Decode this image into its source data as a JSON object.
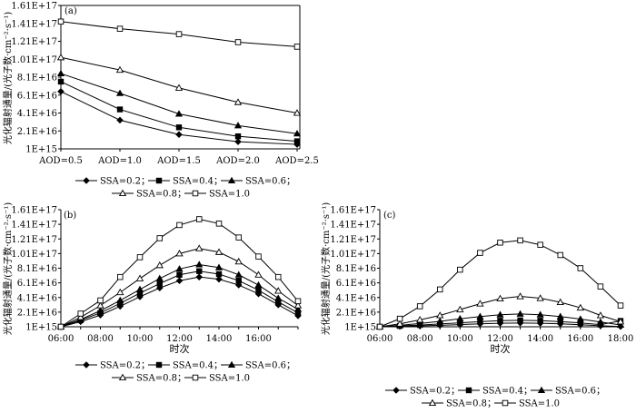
{
  "chart_data": [
    {
      "type": "line",
      "panel_label": "(a)",
      "ylabel": "光化辐射通量/(光子数·cm⁻²·s⁻¹)",
      "xlabel": "",
      "categories": [
        "AOD=0.5",
        "AOD=1.0",
        "AOD=1.5",
        "AOD=2.0",
        "AOD=2.5"
      ],
      "ylim": [
        1000000000000000.0,
        1.61e+17
      ],
      "yticks": [
        {
          "label": "1.61E+17",
          "value": 1.61e+17
        },
        {
          "label": "1.41E+17",
          "value": 1.41e+17
        },
        {
          "label": "1.21E+17",
          "value": 1.21e+17
        },
        {
          "label": "1.01E+17",
          "value": 1.01e+17
        },
        {
          "label": "8.1E+16",
          "value": 8.1e+16
        },
        {
          "label": "6.1E+16",
          "value": 6.1e+16
        },
        {
          "label": "4.1E+16",
          "value": 4.1e+16
        },
        {
          "label": "2.1E+16",
          "value": 2.1e+16
        },
        {
          "label": "1E+15",
          "value": 1000000000000000.0
        }
      ],
      "series": [
        {
          "name": "SSA=0.2",
          "marker": "diamond",
          "values": [
            6.5e+16,
            3.3e+16,
            1.7e+16,
            9000000000000000.0,
            6000000000000000.0
          ]
        },
        {
          "name": "SSA=0.4",
          "marker": "square-filled",
          "values": [
            7.6e+16,
            4.5e+16,
            2.5e+16,
            1.5e+16,
            9500000000000000.0
          ]
        },
        {
          "name": "SSA=0.6",
          "marker": "triangle-filled",
          "values": [
            8.5e+16,
            6.3e+16,
            4e+16,
            2.7e+16,
            1.8e+16
          ]
        },
        {
          "name": "SSA=0.8",
          "marker": "triangle-open",
          "values": [
            1.03e+17,
            8.9e+16,
            6.9e+16,
            5.3e+16,
            4.1e+16
          ]
        },
        {
          "name": "SSA=1.0",
          "marker": "square-open",
          "values": [
            1.43e+17,
            1.35e+17,
            1.29e+17,
            1.2e+17,
            1.15e+17
          ]
        }
      ],
      "legend_placement": "bottom",
      "grid": false
    },
    {
      "type": "line",
      "panel_label": "(b)",
      "ylabel": "光化辐射通量/(光子数·cm⁻²·s⁻¹)",
      "xlabel": "时次",
      "x": [
        6,
        7,
        8,
        9,
        10,
        11,
        12,
        13,
        14,
        15,
        16,
        17,
        18
      ],
      "xticks": [
        {
          "label": "06:00",
          "value": 6
        },
        {
          "label": "08:00",
          "value": 8
        },
        {
          "label": "10:00",
          "value": 10
        },
        {
          "label": "12:00",
          "value": 12
        },
        {
          "label": "14:00",
          "value": 14
        },
        {
          "label": "16:00",
          "value": 16
        }
      ],
      "xlim": [
        6,
        18
      ],
      "ylim": [
        1000000000000000.0,
        1.61e+17
      ],
      "yticks": [
        {
          "label": "1.61E+17",
          "value": 1.61e+17
        },
        {
          "label": "1.41E+17",
          "value": 1.41e+17
        },
        {
          "label": "1.21E+17",
          "value": 1.21e+17
        },
        {
          "label": "1.01E+17",
          "value": 1.01e+17
        },
        {
          "label": "8.1E+16",
          "value": 8.1e+16
        },
        {
          "label": "6.1E+16",
          "value": 6.1e+16
        },
        {
          "label": "4.1E+16",
          "value": 4.1e+16
        },
        {
          "label": "2.1E+16",
          "value": 2.1e+16
        },
        {
          "label": "1E+15",
          "value": 1000000000000000.0
        }
      ],
      "series": [
        {
          "name": "SSA=0.2",
          "marker": "diamond",
          "values": [
            1000000000000000.0,
            8000000000000000.0,
            1.7e+16,
            2.9e+16,
            4.2e+16,
            5.4e+16,
            6.4e+16,
            6.9e+16,
            6.6e+16,
            5.8e+16,
            4.6e+16,
            3.1e+16,
            1.6e+16
          ]
        },
        {
          "name": "SSA=0.4",
          "marker": "square-filled",
          "values": [
            1000000000000000.0,
            1e+16,
            2e+16,
            3.3e+16,
            4.7e+16,
            6e+16,
            7.2e+16,
            7.7e+16,
            7.3e+16,
            6.4e+16,
            5.1e+16,
            3.5e+16,
            2e+16
          ]
        },
        {
          "name": "SSA=0.6",
          "marker": "triangle-filled",
          "values": [
            1000000000000000.0,
            1.1e+16,
            2.3e+16,
            3.7e+16,
            5.2e+16,
            6.7e+16,
            8e+16,
            8.6e+16,
            8.2e+16,
            7.2e+16,
            5.8e+16,
            4e+16,
            2.5e+16
          ]
        },
        {
          "name": "SSA=0.8",
          "marker": "triangle-open",
          "values": [
            1000000000000000.0,
            1.4e+16,
            3e+16,
            4.8e+16,
            6.7e+16,
            8.5e+16,
            1.01e+17,
            1.08e+17,
            1.03e+17,
            9e+16,
            7.2e+16,
            5e+16,
            3e+16
          ]
        },
        {
          "name": "SSA=1.0",
          "marker": "square-open",
          "values": [
            1000000000000000.0,
            1.9e+16,
            3.7e+16,
            6.9e+16,
            9.6e+16,
            1.22e+17,
            1.4e+17,
            1.48e+17,
            1.42e+17,
            1.23e+17,
            9.7e+16,
            6.9e+16,
            3.6e+16
          ]
        }
      ],
      "legend_placement": "bottom",
      "grid": false
    },
    {
      "type": "line",
      "panel_label": "(c)",
      "ylabel": "光化辐射通量/(光子数·cm⁻²·s⁻¹)",
      "xlabel": "时次",
      "x": [
        6,
        7,
        8,
        9,
        10,
        11,
        12,
        13,
        14,
        15,
        16,
        17,
        18
      ],
      "xticks": [
        {
          "label": "06:00",
          "value": 6
        },
        {
          "label": "08:00",
          "value": 8
        },
        {
          "label": "10:00",
          "value": 10
        },
        {
          "label": "12:00",
          "value": 12
        },
        {
          "label": "14:00",
          "value": 14
        },
        {
          "label": "16:00",
          "value": 16
        },
        {
          "label": "18:00",
          "value": 18
        }
      ],
      "xlim": [
        6,
        18
      ],
      "ylim": [
        1000000000000000.0,
        1.61e+17
      ],
      "yticks": [
        {
          "label": "1.61E+17",
          "value": 1.61e+17
        },
        {
          "label": "1.41E+17",
          "value": 1.41e+17
        },
        {
          "label": "1.21E+17",
          "value": 1.21e+17
        },
        {
          "label": "1.01E+17",
          "value": 1.01e+17
        },
        {
          "label": "8.1E+16",
          "value": 8.1e+16
        },
        {
          "label": "6.1E+16",
          "value": 6.1e+16
        },
        {
          "label": "4.1E+16",
          "value": 4.1e+16
        },
        {
          "label": "2.1E+16",
          "value": 2.1e+16
        },
        {
          "label": "1E+15",
          "value": 1000000000000000.0
        }
      ],
      "series": [
        {
          "name": "SSA=0.2",
          "marker": "diamond",
          "values": [
            1000000000000000.0,
            1600000000000000.0,
            2200000000000000.0,
            3000000000000000.0,
            4000000000000000.0,
            5000000000000000.0,
            5800000000000000.0,
            6100000000000000.0,
            5800000000000000.0,
            5000000000000000.0,
            3800000000000000.0,
            2400000000000000.0,
            1300000000000000.0
          ]
        },
        {
          "name": "SSA=0.4",
          "marker": "square-filled",
          "values": [
            1000000000000000.0,
            2200000000000000.0,
            3400000000000000.0,
            4800000000000000.0,
            6400000000000000.0,
            8000000000000000.0,
            9300000000000000.0,
            9800000000000000.0,
            9300000000000000.0,
            8000000000000000.0,
            6300000000000000.0,
            4000000000000000.0,
            9000000000000000.0
          ]
        },
        {
          "name": "SSA=0.6",
          "marker": "triangle-filled",
          "values": [
            1000000000000000.0,
            3000000000000000.0,
            5500000000000000.0,
            8500000000000000.0,
            1.2e+16,
            1.5e+16,
            1.75e+16,
            1.85e+16,
            1.75e+16,
            1.5e+16,
            1.15e+16,
            7500000000000000.0,
            3500000000000000.0
          ]
        },
        {
          "name": "SSA=0.8",
          "marker": "triangle-open",
          "values": [
            1000000000000000.0,
            5000000000000000.0,
            1.05e+16,
            1.65e+16,
            2.45e+16,
            3.25e+16,
            3.95e+16,
            4.25e+16,
            4e+16,
            3.45e+16,
            2.7e+16,
            1.65e+16,
            8000000000000000.0
          ]
        },
        {
          "name": "SSA=1.0",
          "marker": "square-open",
          "values": [
            1000000000000000.0,
            1.2e+16,
            2.9e+16,
            5.2e+16,
            7.9e+16,
            1.02e+17,
            1.16e+17,
            1.19e+17,
            1.13e+17,
            9.9e+16,
            8.1e+16,
            5.6e+16,
            3e+16
          ]
        }
      ],
      "legend_placement": "bottom",
      "grid": false
    }
  ]
}
